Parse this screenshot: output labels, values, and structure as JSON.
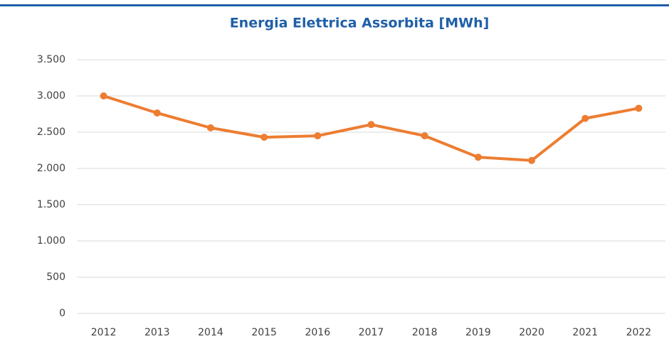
{
  "chart_data": {
    "type": "line",
    "title": "Energia Elettrica Assorbita [MWh]",
    "categories": [
      "2012",
      "2013",
      "2014",
      "2015",
      "2016",
      "2017",
      "2018",
      "2019",
      "2020",
      "2021",
      "2022"
    ],
    "values": [
      3000,
      2765,
      2560,
      2430,
      2450,
      2605,
      2450,
      2155,
      2110,
      2690,
      2830
    ],
    "color": "#ed7d31",
    "ylim": [
      0,
      3500
    ],
    "yticks": [
      0,
      500,
      {
        "value": 1000,
        "label": "1.000"
      },
      {
        "value": 1500,
        "label": "1.500"
      },
      {
        "value": 2000,
        "label": "2.000"
      },
      {
        "value": 2500,
        "label": "2.500"
      },
      {
        "value": 3000,
        "label": "3.000"
      },
      {
        "value": 3500,
        "label": "3.500"
      }
    ],
    "grid": true
  }
}
